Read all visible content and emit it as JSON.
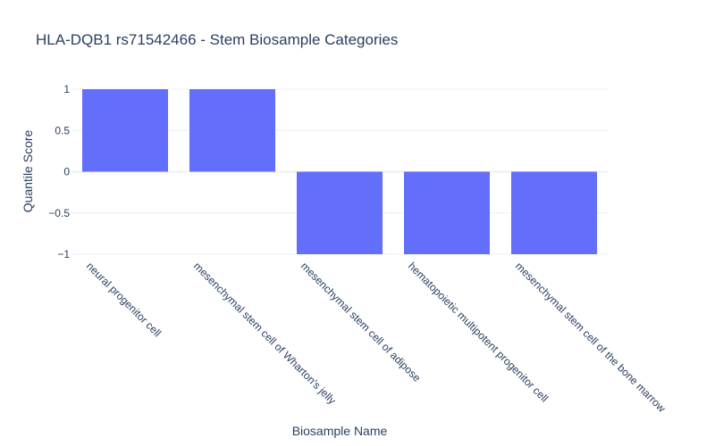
{
  "chart_data": {
    "type": "bar",
    "title": "HLA-DQB1 rs71542466 - Stem Biosample Categories",
    "xlabel": "Biosample Name",
    "ylabel": "Quantile Score",
    "categories": [
      "neural progenitor cell",
      "mesenchymal stem cell of Wharton's jelly",
      "mesenchymal stem cell of adipose",
      "hematopoietic multipotent progenitor cell",
      "mesenchymal stem cell of the bone marrow"
    ],
    "values": [
      1,
      1,
      -1,
      -1,
      -1
    ],
    "ylim": [
      -1,
      1
    ],
    "yticks": [
      1,
      0.5,
      0,
      -0.5,
      -1
    ],
    "ytick_labels": [
      "1",
      "0.5",
      "0",
      "−0.5",
      "−1"
    ],
    "grid": true,
    "legend": "none",
    "colors": {
      "bar": "#636efa",
      "grid": "#ebf0f8",
      "zero_line": "#ebf0f8",
      "text": "#2a3f5f"
    }
  }
}
